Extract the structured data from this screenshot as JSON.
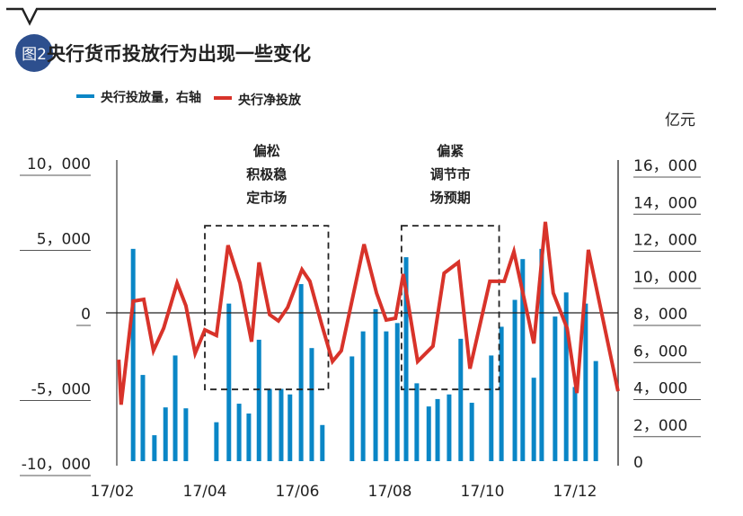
{
  "header": {
    "badge": "图2",
    "title": "央行货币投放行为出现一些变化"
  },
  "colors": {
    "bar": "#0a86c6",
    "line": "#d8332a",
    "badge": "#2d4f8e",
    "axis": "#333333"
  },
  "chart_data": {
    "type": "bar+line",
    "title": "央行货币投放行为出现一些变化",
    "unit_label": "亿元",
    "legend": [
      "央行投放量，右轴",
      "央行净投放"
    ],
    "legend_placement": "top",
    "x_unit": "month of 2017 (fractional)",
    "xlim": [
      2,
      13
    ],
    "x_ticks": [
      {
        "value": 2,
        "label": "17/02"
      },
      {
        "value": 4,
        "label": "17/04"
      },
      {
        "value": 6,
        "label": "17/06"
      },
      {
        "value": 8,
        "label": "17/08"
      },
      {
        "value": 10,
        "label": "17/10"
      },
      {
        "value": 12,
        "label": "17/12"
      }
    ],
    "left_axis": {
      "ylim": [
        -10000,
        10000
      ],
      "ticks": [
        {
          "value": 10000,
          "label": "10，000"
        },
        {
          "value": 5000,
          "label": "5，000"
        },
        {
          "value": 0,
          "label": "0"
        },
        {
          "value": -5000,
          "label": "-5，000"
        },
        {
          "value": -10000,
          "label": "-10，000"
        }
      ]
    },
    "right_axis": {
      "ylim": [
        0,
        16000
      ],
      "ticks": [
        {
          "value": 16000,
          "label": "16，000"
        },
        {
          "value": 14000,
          "label": "14，000"
        },
        {
          "value": 12000,
          "label": "12，000"
        },
        {
          "value": 10000,
          "label": "10，000"
        },
        {
          "value": 8000,
          "label": "8，000"
        },
        {
          "value": 6000,
          "label": "6，000"
        },
        {
          "value": 4000,
          "label": "4，000"
        },
        {
          "value": 2000,
          "label": "2，000"
        },
        {
          "value": 0,
          "label": "0"
        }
      ]
    },
    "series": [
      {
        "name": "央行投放量，右轴",
        "type": "bar",
        "axis": "right",
        "x": [
          2.45,
          2.66,
          2.91,
          3.15,
          3.36,
          3.59,
          4.25,
          4.52,
          4.74,
          4.95,
          5.17,
          5.4,
          5.65,
          5.84,
          6.08,
          6.31,
          6.54,
          7.18,
          7.42,
          7.69,
          7.92,
          8.16,
          8.35,
          8.58,
          8.84,
          9.03,
          9.28,
          9.53,
          9.77,
          10.19,
          10.41,
          10.7,
          10.87,
          11.11,
          11.28,
          11.57,
          11.81,
          12.0,
          12.23,
          12.45
        ],
        "values": [
          11450,
          4650,
          1400,
          2900,
          5700,
          2850,
          2100,
          8500,
          3100,
          2570,
          6550,
          3900,
          3900,
          3600,
          9550,
          6100,
          1950,
          5650,
          7000,
          8200,
          7000,
          7450,
          11000,
          4200,
          2950,
          3350,
          3600,
          6600,
          3150,
          5700,
          7250,
          8700,
          10900,
          4500,
          11450,
          7800,
          9100,
          4000,
          8500,
          5400
        ]
      },
      {
        "name": "央行净投放",
        "type": "line",
        "axis": "left",
        "x": [
          2.14,
          2.19,
          2.45,
          2.68,
          2.89,
          3.11,
          3.4,
          3.59,
          3.79,
          4.0,
          4.25,
          4.5,
          4.76,
          5.01,
          5.17,
          5.4,
          5.59,
          5.79,
          6.1,
          6.27,
          6.52,
          6.76,
          6.95,
          7.44,
          7.71,
          7.92,
          8.12,
          8.29,
          8.6,
          8.93,
          9.17,
          9.48,
          9.73,
          10.16,
          10.47,
          10.68,
          11.11,
          11.36,
          11.53,
          11.83,
          12.04,
          12.29,
          12.93
        ],
        "values": [
          -3120,
          -6120,
          780,
          900,
          -2520,
          -1020,
          1980,
          480,
          -2700,
          -1140,
          -1500,
          4500,
          1980,
          -1920,
          3360,
          -120,
          -540,
          360,
          2880,
          2100,
          -720,
          -3240,
          -2520,
          4560,
          1320,
          -480,
          -360,
          2580,
          -3240,
          -2220,
          2640,
          3360,
          -3720,
          2100,
          2100,
          4080,
          -2040,
          6060,
          1320,
          -1020,
          -5340,
          4200,
          -5220
        ]
      }
    ],
    "annotations": [
      {
        "lines": [
          "偏松",
          "积极稳",
          "定市场"
        ],
        "x_range": [
          4.0,
          6.67
        ],
        "y_range": [
          -5100,
          5800
        ]
      },
      {
        "lines": [
          "偏紧",
          "调节市",
          "场预期"
        ],
        "x_range": [
          8.25,
          10.36
        ],
        "y_range": [
          -5100,
          5800
        ]
      }
    ]
  }
}
